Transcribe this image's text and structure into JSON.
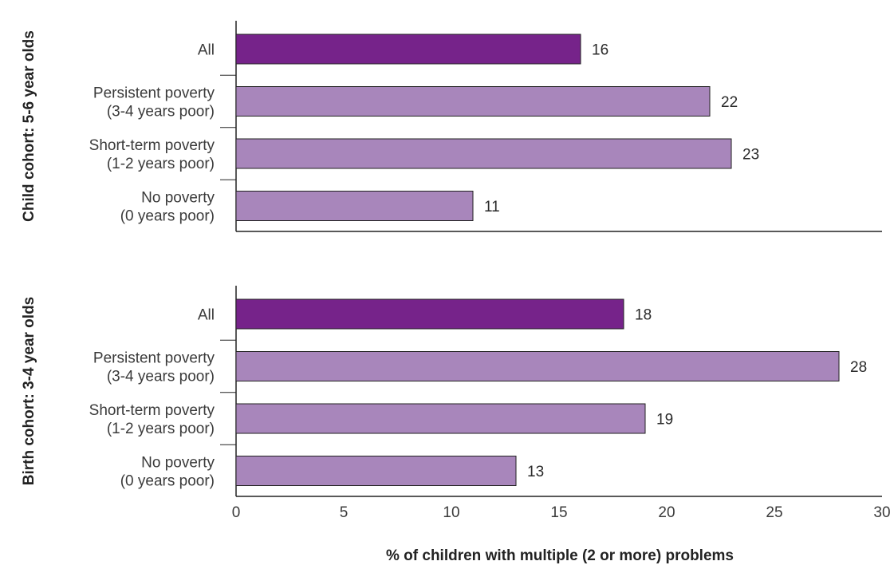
{
  "chart_data": {
    "type": "bar",
    "orientation": "horizontal",
    "xlabel": "% of children with multiple (2 or more) problems",
    "xlim": [
      0,
      30
    ],
    "xticks": [
      0,
      5,
      10,
      15,
      20,
      25,
      30
    ],
    "colors": {
      "all": "#76238a",
      "other": "#a886bb"
    },
    "grid": false,
    "legend": "none",
    "panels": [
      {
        "label": "Child cohort: 5-6 year olds",
        "categories": [
          {
            "lines": [
              "All"
            ],
            "value": 16,
            "highlight": true
          },
          {
            "lines": [
              "Persistent poverty",
              "(3-4 years poor)"
            ],
            "value": 22,
            "highlight": false
          },
          {
            "lines": [
              "Short-term poverty",
              "(1-2 years poor)"
            ],
            "value": 23,
            "highlight": false
          },
          {
            "lines": [
              "No poverty",
              "(0 years poor)"
            ],
            "value": 11,
            "highlight": false
          }
        ]
      },
      {
        "label": "Birth cohort: 3-4 year olds",
        "categories": [
          {
            "lines": [
              "All"
            ],
            "value": 18,
            "highlight": true
          },
          {
            "lines": [
              "Persistent poverty",
              "(3-4 years poor)"
            ],
            "value": 28,
            "highlight": false
          },
          {
            "lines": [
              "Short-term poverty",
              "(1-2 years poor)"
            ],
            "value": 19,
            "highlight": false
          },
          {
            "lines": [
              "No poverty",
              "(0 years poor)"
            ],
            "value": 13,
            "highlight": false
          }
        ]
      }
    ]
  }
}
